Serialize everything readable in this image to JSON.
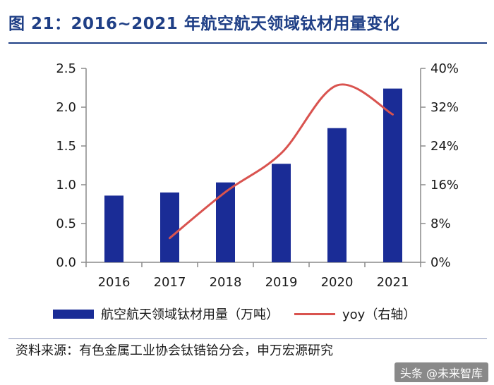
{
  "title": "图 21：2016~2021 年航空航天领域钛材用量变化",
  "chart_data": {
    "type": "bar+line",
    "categories": [
      "2016",
      "2017",
      "2018",
      "2019",
      "2020",
      "2021"
    ],
    "series": [
      {
        "name": "航空航天领域钛材用量（万吨）",
        "type": "bar",
        "axis": "left",
        "color": "#1a2c96",
        "values": [
          0.86,
          0.9,
          1.03,
          1.27,
          1.73,
          2.24
        ]
      },
      {
        "name": "yoy（右轴）",
        "type": "line",
        "axis": "right",
        "color": "#d9534f",
        "values": [
          null,
          0.05,
          0.145,
          0.225,
          0.365,
          0.305
        ]
      }
    ],
    "left_axis": {
      "min": 0,
      "max": 2.5,
      "ticks": [
        "0.0",
        "0.5",
        "1.0",
        "1.5",
        "2.0",
        "2.5"
      ]
    },
    "right_axis": {
      "min": 0,
      "max": 0.4,
      "ticks": [
        "0%",
        "8%",
        "16%",
        "24%",
        "32%",
        "40%"
      ]
    },
    "legend_position": "bottom"
  },
  "legend": {
    "bar_label": "航空航天领域钛材用量（万吨）",
    "line_label": "yoy（右轴）"
  },
  "source": "资料来源：有色金属工业协会钛锆铪分会，申万宏源研究",
  "watermark": "头条 @未来智库"
}
